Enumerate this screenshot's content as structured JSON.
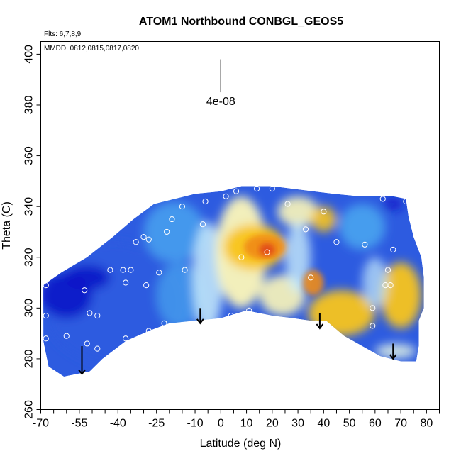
{
  "chart_data": {
    "type": "heatmap",
    "title": "ATOM1 Northbound CONBGL_GEOS5",
    "subtitle_flights": "Flts: 6,7,8,9",
    "subtitle_dates": "MMDD: 0812,0815,0817,0820",
    "xlabel": "Latitude (deg N)",
    "ylabel": "Theta (C)",
    "xlim": [
      -70,
      85
    ],
    "ylim": [
      260,
      405
    ],
    "x_ticks": [
      -70,
      -55,
      -40,
      -25,
      -10,
      0,
      10,
      20,
      30,
      40,
      50,
      60,
      70,
      80
    ],
    "x_tick_labels": [
      "-70",
      "-55",
      "-40",
      "-25",
      "-10",
      "0",
      "10",
      "20",
      "30",
      "40",
      "50",
      "60",
      "70",
      "80"
    ],
    "x_minor_ticks": [
      -65,
      -60,
      -50,
      -45,
      -35,
      -30,
      -20,
      -15,
      -5,
      5,
      15,
      25,
      35,
      45,
      55,
      65,
      75,
      85
    ],
    "y_ticks": [
      260,
      280,
      300,
      320,
      340,
      360,
      380,
      400
    ],
    "y_tick_labels": [
      "260",
      "280",
      "300",
      "320",
      "340",
      "360",
      "380",
      "400"
    ],
    "scale_bar": {
      "x": 0,
      "y_top": 398,
      "y_bottom": 385,
      "label": "4e-08"
    },
    "down_arrows": [
      {
        "x": -54,
        "y_top": 285,
        "y_bottom": 274
      },
      {
        "x": -8,
        "y_top": 300,
        "y_bottom": 294
      },
      {
        "x": 38.5,
        "y_top": 298,
        "y_bottom": 292
      },
      {
        "x": 67,
        "y_top": 286,
        "y_bottom": 280
      }
    ],
    "colors": {
      "deep_blue": "#0a14c8",
      "mid_blue": "#2d5be0",
      "light_blue": "#4aa8f0",
      "pale_blue": "#c8ecfa",
      "pale_yellow": "#fdf7b8",
      "yellow": "#f8c41c",
      "orange": "#f08c14",
      "red": "#e0461a",
      "pale_green": "#e4f6e4"
    },
    "field_polygon": [
      [
        -69,
        309
      ],
      [
        -69,
        287
      ],
      [
        -67,
        277
      ],
      [
        -61,
        273
      ],
      [
        -51,
        275
      ],
      [
        -46,
        280
      ],
      [
        -37,
        287
      ],
      [
        -28,
        291
      ],
      [
        -20,
        294
      ],
      [
        -10,
        295
      ],
      [
        0,
        296
      ],
      [
        10,
        299
      ],
      [
        20,
        297
      ],
      [
        28,
        296
      ],
      [
        35,
        295
      ],
      [
        41,
        295
      ],
      [
        48,
        289
      ],
      [
        55,
        285
      ],
      [
        62,
        281
      ],
      [
        70,
        279
      ],
      [
        76,
        279
      ],
      [
        77,
        285
      ],
      [
        77,
        295
      ],
      [
        79,
        300
      ],
      [
        79,
        312
      ],
      [
        78,
        320
      ],
      [
        75,
        328
      ],
      [
        73,
        336
      ],
      [
        72,
        343
      ],
      [
        67,
        344
      ],
      [
        54,
        344
      ],
      [
        44,
        345
      ],
      [
        36,
        346
      ],
      [
        28,
        347
      ],
      [
        20,
        348
      ],
      [
        8,
        348
      ],
      [
        0,
        346
      ],
      [
        -10,
        345
      ],
      [
        -18,
        343
      ],
      [
        -26,
        341
      ],
      [
        -34,
        335
      ],
      [
        -42,
        328
      ],
      [
        -52,
        320
      ],
      [
        -62,
        314
      ]
    ],
    "field_blobs": [
      {
        "color": "mid_blue",
        "x": -42,
        "y": 302,
        "rx": 27,
        "ry": 24,
        "opacity": 0.9
      },
      {
        "color": "deep_blue",
        "x": -60,
        "y": 305,
        "rx": 10,
        "ry": 9,
        "opacity": 0.9
      },
      {
        "color": "deep_blue",
        "x": -52,
        "y": 312,
        "rx": 9,
        "ry": 5,
        "opacity": 0.85
      },
      {
        "color": "light_blue",
        "x": -18,
        "y": 330,
        "rx": 12,
        "ry": 12,
        "opacity": 0.8
      },
      {
        "color": "light_blue",
        "x": -16,
        "y": 305,
        "rx": 9,
        "ry": 13,
        "opacity": 0.7
      },
      {
        "color": "pale_blue",
        "x": -5,
        "y": 312,
        "rx": 6,
        "ry": 22,
        "opacity": 0.85
      },
      {
        "color": "pale_yellow",
        "x": 8,
        "y": 322,
        "rx": 10,
        "ry": 22,
        "opacity": 0.95
      },
      {
        "color": "yellow",
        "x": 13,
        "y": 324,
        "rx": 12,
        "ry": 9,
        "opacity": 0.95
      },
      {
        "color": "orange",
        "x": 17,
        "y": 324,
        "rx": 8,
        "ry": 5,
        "opacity": 0.95
      },
      {
        "color": "red",
        "x": 18,
        "y": 323,
        "rx": 3,
        "ry": 2.5,
        "opacity": 0.9
      },
      {
        "color": "pale_yellow",
        "x": 30,
        "y": 338,
        "rx": 8,
        "ry": 6,
        "opacity": 0.9
      },
      {
        "color": "yellow",
        "x": 40,
        "y": 335,
        "rx": 5,
        "ry": 5,
        "opacity": 0.9
      },
      {
        "color": "light_blue",
        "x": 55,
        "y": 332,
        "rx": 9,
        "ry": 9,
        "opacity": 0.85
      },
      {
        "color": "deep_blue",
        "x": 67,
        "y": 341,
        "rx": 4,
        "ry": 2.5,
        "opacity": 0.85
      },
      {
        "color": "pale_yellow",
        "x": 24,
        "y": 305,
        "rx": 9,
        "ry": 8,
        "opacity": 0.9
      },
      {
        "color": "pale_blue",
        "x": 30,
        "y": 320,
        "rx": 5,
        "ry": 14,
        "opacity": 0.8
      },
      {
        "color": "orange",
        "x": 36,
        "y": 310,
        "rx": 4,
        "ry": 5,
        "opacity": 0.9
      },
      {
        "color": "yellow",
        "x": 47,
        "y": 298,
        "rx": 13,
        "ry": 9,
        "opacity": 0.95
      },
      {
        "color": "yellow",
        "x": 70,
        "y": 305,
        "rx": 8,
        "ry": 13,
        "opacity": 0.95
      },
      {
        "color": "pale_blue",
        "x": 60,
        "y": 310,
        "rx": 5,
        "ry": 10,
        "opacity": 0.7
      },
      {
        "color": "pale_green",
        "x": 68,
        "y": 283,
        "rx": 8,
        "ry": 3,
        "opacity": 0.85
      }
    ],
    "obs_points": [
      [
        -68,
        309
      ],
      [
        -68,
        297
      ],
      [
        -68,
        288
      ],
      [
        -60,
        289
      ],
      [
        -53,
        307
      ],
      [
        -51,
        298
      ],
      [
        -48,
        297
      ],
      [
        -52,
        286
      ],
      [
        -48,
        284
      ],
      [
        -43,
        315
      ],
      [
        -38,
        315
      ],
      [
        -37,
        310
      ],
      [
        -35,
        315
      ],
      [
        -37,
        288
      ],
      [
        -33,
        326
      ],
      [
        -30,
        328
      ],
      [
        -29,
        309
      ],
      [
        -28,
        327
      ],
      [
        -28,
        291
      ],
      [
        -24,
        314
      ],
      [
        -22,
        294
      ],
      [
        -21,
        330
      ],
      [
        -19,
        335
      ],
      [
        -14,
        315
      ],
      [
        -15,
        340
      ],
      [
        -7,
        333
      ],
      [
        -6,
        342
      ],
      [
        2,
        344
      ],
      [
        4,
        297
      ],
      [
        6,
        346
      ],
      [
        8,
        320
      ],
      [
        11,
        299
      ],
      [
        14,
        347
      ],
      [
        18,
        322
      ],
      [
        20,
        347
      ],
      [
        26,
        341
      ],
      [
        33,
        331
      ],
      [
        35,
        312
      ],
      [
        37,
        294
      ],
      [
        40,
        338
      ],
      [
        45,
        326
      ],
      [
        56,
        325
      ],
      [
        59,
        300
      ],
      [
        59,
        293
      ],
      [
        63,
        343
      ],
      [
        64,
        309
      ],
      [
        65,
        315
      ],
      [
        66,
        309
      ],
      [
        67,
        323
      ],
      [
        72,
        342
      ]
    ]
  }
}
